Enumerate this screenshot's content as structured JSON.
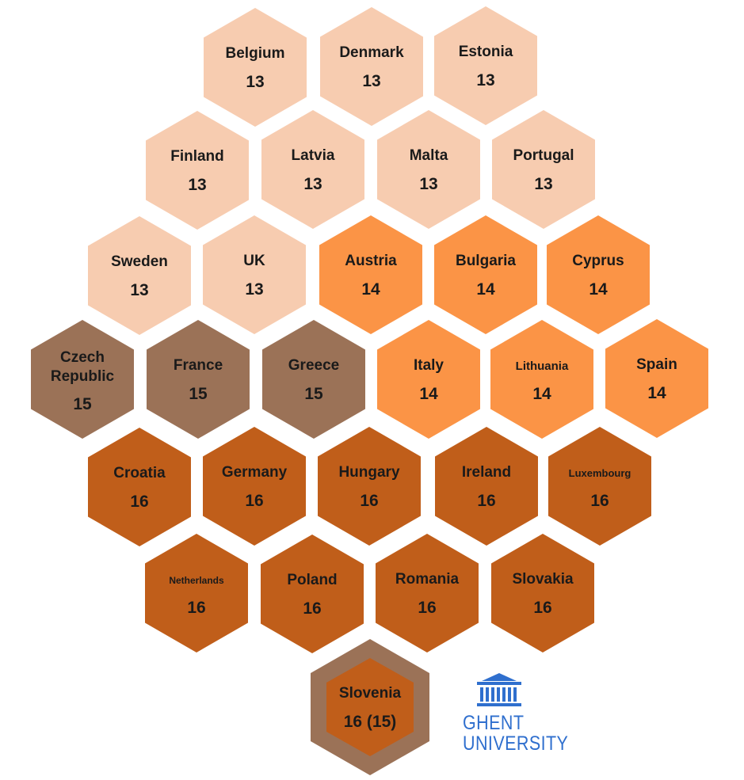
{
  "colors": {
    "13": "#f7ccb0",
    "14": "#fb9446",
    "15": "#9b7257",
    "16": "#c05e1a",
    "slovenia_outer": "#9b7257",
    "logo": "#2f6fce"
  },
  "countries": [
    {
      "name": "Belgium",
      "value": "13",
      "group": "13"
    },
    {
      "name": "Denmark",
      "value": "13",
      "group": "13"
    },
    {
      "name": "Estonia",
      "value": "13",
      "group": "13"
    },
    {
      "name": "Finland",
      "value": "13",
      "group": "13"
    },
    {
      "name": "Latvia",
      "value": "13",
      "group": "13"
    },
    {
      "name": "Malta",
      "value": "13",
      "group": "13"
    },
    {
      "name": "Portugal",
      "value": "13",
      "group": "13"
    },
    {
      "name": "Sweden",
      "value": "13",
      "group": "13"
    },
    {
      "name": "UK",
      "value": "13",
      "group": "13"
    },
    {
      "name": "Austria",
      "value": "14",
      "group": "14"
    },
    {
      "name": "Bulgaria",
      "value": "14",
      "group": "14"
    },
    {
      "name": "Cyprus",
      "value": "14",
      "group": "14"
    },
    {
      "name": "Czech Republic",
      "value": "15",
      "group": "15"
    },
    {
      "name": "France",
      "value": "15",
      "group": "15"
    },
    {
      "name": "Greece",
      "value": "15",
      "group": "15"
    },
    {
      "name": "Italy",
      "value": "14",
      "group": "14"
    },
    {
      "name": "Lithuania",
      "value": "14",
      "group": "14"
    },
    {
      "name": "Spain",
      "value": "14",
      "group": "14"
    },
    {
      "name": "Croatia",
      "value": "16",
      "group": "16"
    },
    {
      "name": "Germany",
      "value": "16",
      "group": "16"
    },
    {
      "name": "Hungary",
      "value": "16",
      "group": "16"
    },
    {
      "name": "Ireland",
      "value": "16",
      "group": "16"
    },
    {
      "name": "Luxembourg",
      "value": "16",
      "group": "16"
    },
    {
      "name": "Netherlands",
      "value": "16",
      "group": "16"
    },
    {
      "name": "Poland",
      "value": "16",
      "group": "16"
    },
    {
      "name": "Romania",
      "value": "16",
      "group": "16"
    },
    {
      "name": "Slovakia",
      "value": "16",
      "group": "16"
    },
    {
      "name": "Slovenia",
      "value": "16 (15)",
      "group": "16"
    }
  ],
  "logo": {
    "line1": "GHENT",
    "line2": "UNIVERSITY",
    "icon": "university-building-icon"
  }
}
